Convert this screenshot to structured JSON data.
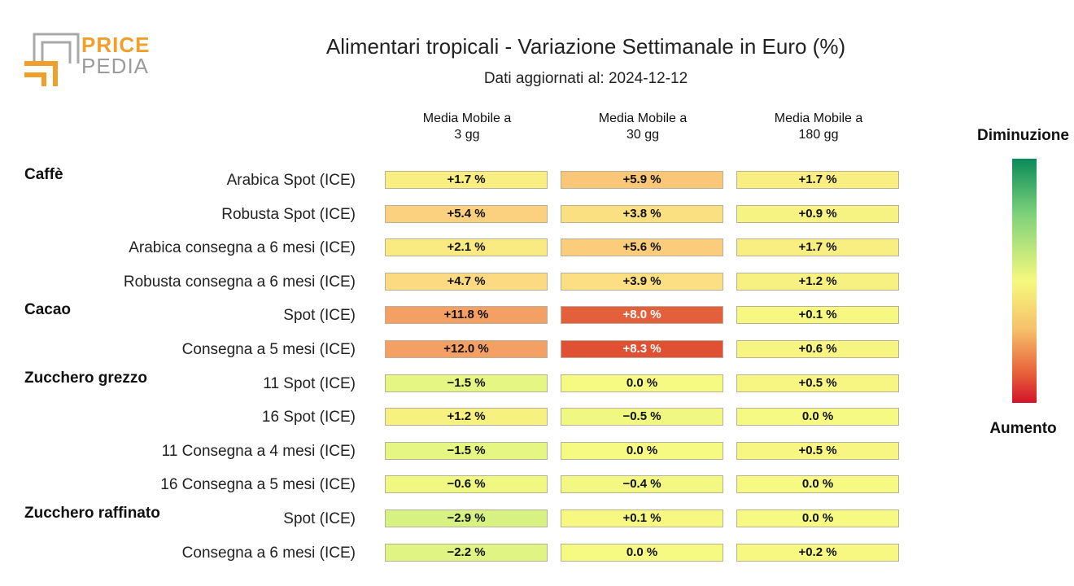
{
  "logo": {
    "line1": "PRICE",
    "line2": "PEDIA"
  },
  "colors": {
    "brand_orange": "#f0a02a",
    "brand_gray": "#9b9b9b"
  },
  "chart_data": {
    "type": "heatmap",
    "title": "Alimentari tropicali - Variazione Settimanale in Euro (%)",
    "subtitle": "Dati aggiornati al: 2024-12-12",
    "columns": [
      "Media Mobile a\n3 gg",
      "Media Mobile a\n30 gg",
      "Media Mobile a\n180 gg"
    ],
    "colorbar": {
      "top_label": "Diminuzione",
      "bottom_label": "Aumento"
    },
    "groups": [
      {
        "name": "Caffè",
        "rows": [
          {
            "label": "Arabica Spot (ICE)",
            "values": [
              "+1.7 %",
              "+5.9 %",
              "+1.7 %"
            ]
          },
          {
            "label": "Robusta Spot (ICE)",
            "values": [
              "+5.4 %",
              "+3.8 %",
              "+0.9 %"
            ]
          },
          {
            "label": "Arabica consegna a 6 mesi (ICE)",
            "values": [
              "+2.1 %",
              "+5.6 %",
              "+1.7 %"
            ]
          },
          {
            "label": "Robusta consegna a 6 mesi (ICE)",
            "values": [
              "+4.7 %",
              "+3.9 %",
              "+1.2 %"
            ]
          }
        ]
      },
      {
        "name": "Cacao",
        "rows": [
          {
            "label": "Spot (ICE)",
            "values": [
              "+11.8 %",
              "+8.0 %",
              "+0.1 %"
            ]
          },
          {
            "label": "Consegna a 5 mesi (ICE)",
            "values": [
              "+12.0 %",
              "+8.3 %",
              "+0.6 %"
            ]
          }
        ]
      },
      {
        "name": "Zucchero grezzo",
        "rows": [
          {
            "label": "11 Spot (ICE)",
            "values": [
              "−1.5 %",
              "0.0 %",
              "+0.5 %"
            ]
          },
          {
            "label": "16 Spot (ICE)",
            "values": [
              "+1.2 %",
              "−0.5 %",
              "0.0 %"
            ]
          },
          {
            "label": "11 Consegna a 4 mesi (ICE)",
            "values": [
              "−1.5 %",
              "0.0 %",
              "+0.5 %"
            ]
          },
          {
            "label": "16 Consegna a 5 mesi (ICE)",
            "values": [
              "−0.6 %",
              "−0.4 %",
              "0.0 %"
            ]
          }
        ]
      },
      {
        "name": "Zucchero raffinato",
        "rows": [
          {
            "label": "Spot (ICE)",
            "values": [
              "−2.9 %",
              "+0.1 %",
              "0.0 %"
            ]
          },
          {
            "label": "Consegna a 6 mesi (ICE)",
            "values": [
              "−2.2 %",
              "0.0 %",
              "+0.2 %"
            ]
          }
        ]
      }
    ]
  }
}
